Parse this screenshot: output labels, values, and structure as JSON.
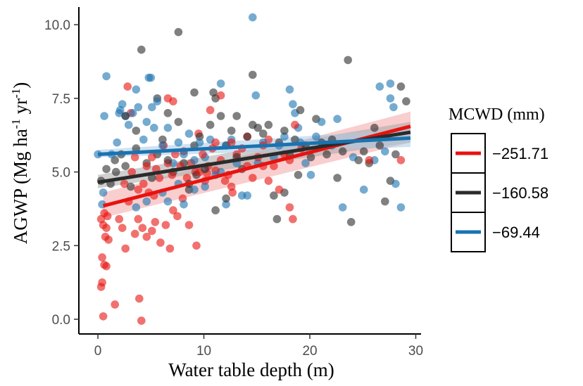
{
  "chart_data": {
    "type": "scatter",
    "xlabel": "Water table depth (m)",
    "ylabel": {
      "prefix": "AGWP (Mg ha",
      "sup1": "-1",
      "mid": " yr",
      "sup2": "-1",
      "suffix": ")"
    },
    "xlim": [
      -1.8,
      30.5
    ],
    "ylim": [
      -0.5,
      10.6
    ],
    "x_ticks": [
      0,
      10,
      20,
      30
    ],
    "x_tick_labels": [
      "0",
      "10",
      "20",
      "30"
    ],
    "y_ticks": [
      0,
      2.5,
      5,
      7.5,
      10
    ],
    "y_tick_labels": [
      "0.0",
      "2.5",
      "5.0",
      "7.5",
      "10.0"
    ],
    "grid": false,
    "legend": {
      "title": "MCWD (mm)",
      "placement": "right",
      "entries": [
        {
          "label": "−251.71",
          "color": "#e8120f"
        },
        {
          "label": "−160.58",
          "color": "#2b2b2b"
        },
        {
          "label": "−69.44",
          "color": "#1a73b0"
        }
      ]
    },
    "fit_lines": [
      {
        "name": "−251.71",
        "color": "#e8120f",
        "band": "#f4a5a5",
        "x": [
          0.5,
          29.5
        ],
        "y": [
          3.85,
          6.55
        ],
        "ci_lo": [
          3.45,
          6.0
        ],
        "ci_hi": [
          4.3,
          7.05
        ]
      },
      {
        "name": "−160.58",
        "color": "#2b2b2b",
        "band": "#a8a8a8",
        "x": [
          0,
          29.5
        ],
        "y": [
          4.65,
          6.35
        ],
        "ci_lo": [
          4.45,
          6.0
        ],
        "ci_hi": [
          4.9,
          6.7
        ]
      },
      {
        "name": "−69.44",
        "color": "#1a73b0",
        "band": "#a8cbe6",
        "x": [
          0,
          29.5
        ],
        "y": [
          5.6,
          6.15
        ],
        "ci_lo": [
          5.5,
          5.85
        ],
        "ci_hi": [
          5.75,
          6.45
        ]
      }
    ],
    "series": [
      {
        "name": "−251.71",
        "color": "#e8120f",
        "points": [
          [
            0.3,
            1.1
          ],
          [
            0.4,
            1.25
          ],
          [
            0.5,
            0.1
          ],
          [
            0.6,
            1.85
          ],
          [
            0.8,
            1.8
          ],
          [
            0.4,
            2.1
          ],
          [
            0.7,
            2.8
          ],
          [
            1.0,
            2.7
          ],
          [
            0.5,
            3.2
          ],
          [
            0.8,
            3.1
          ],
          [
            0.6,
            3.6
          ],
          [
            0.3,
            3.4
          ],
          [
            0.9,
            3.5
          ],
          [
            1.6,
            0.5
          ],
          [
            2.0,
            3.4
          ],
          [
            2.3,
            3.1
          ],
          [
            2.6,
            2.4
          ],
          [
            2.9,
            4.0
          ],
          [
            3.5,
            2.9
          ],
          [
            3.8,
            3.4
          ],
          [
            4.2,
            3.1
          ],
          [
            4.6,
            2.8
          ],
          [
            5.1,
            3.0
          ],
          [
            5.4,
            3.3
          ],
          [
            5.9,
            2.6
          ],
          [
            6.4,
            3.2
          ],
          [
            6.8,
            2.4
          ],
          [
            7.1,
            3.7
          ],
          [
            7.5,
            3.5
          ],
          [
            8.0,
            4.1
          ],
          [
            8.6,
            3.2
          ],
          [
            9.3,
            2.5
          ],
          [
            3.9,
            0.7
          ],
          [
            4.1,
            -0.05
          ],
          [
            2.8,
            7.9
          ],
          [
            2.5,
            4.6
          ],
          [
            3.2,
            5.0
          ],
          [
            3.5,
            5.5
          ],
          [
            3.8,
            4.4
          ],
          [
            4.3,
            4.6
          ],
          [
            4.6,
            5.2
          ],
          [
            5.1,
            5.5
          ],
          [
            5.5,
            5.1
          ],
          [
            5.8,
            4.8
          ],
          [
            6.2,
            5.9
          ],
          [
            6.6,
            5.3
          ],
          [
            7.0,
            4.9
          ],
          [
            7.3,
            5.6
          ],
          [
            7.8,
            5.2
          ],
          [
            8.1,
            5.7
          ],
          [
            8.4,
            4.8
          ],
          [
            8.8,
            5.3
          ],
          [
            9.2,
            5.0
          ],
          [
            9.5,
            6.3
          ],
          [
            9.9,
            5.6
          ],
          [
            10.1,
            4.7
          ],
          [
            10.4,
            5.2
          ],
          [
            10.8,
            5.8
          ],
          [
            11.1,
            6.0
          ],
          [
            11.6,
            5.4
          ],
          [
            12.0,
            4.7
          ],
          [
            12.3,
            4.9
          ],
          [
            12.7,
            4.3
          ],
          [
            12.6,
            4.5
          ],
          [
            13.1,
            5.6
          ],
          [
            13.6,
            5.8
          ],
          [
            14.1,
            5.2
          ],
          [
            14.6,
            4.8
          ],
          [
            15.1,
            5.5
          ],
          [
            15.6,
            5.9
          ],
          [
            16.1,
            6.1
          ],
          [
            16.6,
            5.2
          ],
          [
            17.1,
            4.4
          ],
          [
            17.6,
            5.6
          ],
          [
            18.1,
            3.8
          ],
          [
            18.4,
            3.4
          ],
          [
            18.6,
            6.6
          ],
          [
            19.2,
            5.8
          ],
          [
            3.1,
            7.0
          ],
          [
            6.6,
            7.5
          ],
          [
            7.1,
            7.4
          ],
          [
            10.6,
            7.1
          ],
          [
            11.6,
            7.6
          ],
          [
            12.6,
            6.0
          ],
          [
            14.1,
            6.2
          ],
          [
            15.6,
            5.2
          ],
          [
            16.1,
            4.7
          ],
          [
            18.1,
            5.4
          ],
          [
            25.6,
            5.4
          ],
          [
            28.6,
            5.4
          ],
          [
            9.6,
            5.0
          ],
          [
            10.3,
            4.95
          ],
          [
            11.1,
            5.05
          ],
          [
            4.8,
            4.3
          ],
          [
            5.3,
            4.2
          ]
        ]
      },
      {
        "name": "−160.58",
        "color": "#2b2b2b",
        "points": [
          [
            0.3,
            4.7
          ],
          [
            0.8,
            5.1
          ],
          [
            1.2,
            4.6
          ],
          [
            1.7,
            5.0
          ],
          [
            2.2,
            5.6
          ],
          [
            2.6,
            5.2
          ],
          [
            3.1,
            4.5
          ],
          [
            3.6,
            5.8
          ],
          [
            4.1,
            9.15
          ],
          [
            4.6,
            5.3
          ],
          [
            5.1,
            4.8
          ],
          [
            5.6,
            5.6
          ],
          [
            6.1,
            6.1
          ],
          [
            6.6,
            5.4
          ],
          [
            7.1,
            5.0
          ],
          [
            7.6,
            9.75
          ],
          [
            8.1,
            5.3
          ],
          [
            8.6,
            4.6
          ],
          [
            9.1,
            5.9
          ],
          [
            9.6,
            6.2
          ],
          [
            10.1,
            5.1
          ],
          [
            10.6,
            6.6
          ],
          [
            10.9,
            7.7
          ],
          [
            11.1,
            7.5
          ],
          [
            11.6,
            6.9
          ],
          [
            12.1,
            5.9
          ],
          [
            12.6,
            6.4
          ],
          [
            13.1,
            5.5
          ],
          [
            13.6,
            5.1
          ],
          [
            14.1,
            6.2
          ],
          [
            14.6,
            8.3
          ],
          [
            15.1,
            6.5
          ],
          [
            15.6,
            6.3
          ],
          [
            16.1,
            6.6
          ],
          [
            16.6,
            4.2
          ],
          [
            17.1,
            6.0
          ],
          [
            17.6,
            6.4
          ],
          [
            18.1,
            5.6
          ],
          [
            18.6,
            6.1
          ],
          [
            19.1,
            7.1
          ],
          [
            19.6,
            5.9
          ],
          [
            20.1,
            5.5
          ],
          [
            20.6,
            6.8
          ],
          [
            21.1,
            6.0
          ],
          [
            21.6,
            5.6
          ],
          [
            22.1,
            6.1
          ],
          [
            22.6,
            4.8
          ],
          [
            23.1,
            5.7
          ],
          [
            23.6,
            8.8
          ],
          [
            23.9,
            3.3
          ],
          [
            24.6,
            5.4
          ],
          [
            25.1,
            5.7
          ],
          [
            25.6,
            5.3
          ],
          [
            26.1,
            6.5
          ],
          [
            26.6,
            5.9
          ],
          [
            27.1,
            4.0
          ],
          [
            27.6,
            4.7
          ],
          [
            28.1,
            5.6
          ],
          [
            28.6,
            7.9
          ],
          [
            29.1,
            7.4
          ],
          [
            5.6,
            7.5
          ],
          [
            6.6,
            7.0
          ],
          [
            7.6,
            6.7
          ],
          [
            8.6,
            4.4
          ],
          [
            9.1,
            7.7
          ],
          [
            11.1,
            3.7
          ],
          [
            12.1,
            4.1
          ],
          [
            13.1,
            6.9
          ],
          [
            14.6,
            6.6
          ],
          [
            16.9,
            3.4
          ],
          [
            17.6,
            4.3
          ],
          [
            18.9,
            4.9
          ],
          [
            3.6,
            6.4
          ],
          [
            2.6,
            6.9
          ],
          [
            1.6,
            5.4
          ],
          [
            9.3,
            4.9
          ]
        ]
      },
      {
        "name": "−69.44",
        "color": "#1a73b0",
        "points": [
          [
            0.0,
            5.6
          ],
          [
            0.4,
            3.9
          ],
          [
            0.5,
            4.3
          ],
          [
            0.6,
            6.9
          ],
          [
            0.8,
            8.25
          ],
          [
            1.3,
            5.6
          ],
          [
            1.8,
            6.0
          ],
          [
            2.0,
            7.0
          ],
          [
            2.3,
            7.3
          ],
          [
            2.6,
            6.9
          ],
          [
            2.9,
            6.6
          ],
          [
            3.3,
            7.0
          ],
          [
            3.6,
            7.8
          ],
          [
            3.8,
            7.2
          ],
          [
            4.3,
            6.1
          ],
          [
            4.6,
            6.7
          ],
          [
            4.8,
            8.2
          ],
          [
            5.0,
            8.2
          ],
          [
            5.3,
            6.5
          ],
          [
            5.6,
            7.4
          ],
          [
            6.1,
            5.9
          ],
          [
            6.6,
            6.5
          ],
          [
            7.1,
            5.3
          ],
          [
            7.6,
            6.0
          ],
          [
            8.1,
            5.6
          ],
          [
            8.6,
            6.3
          ],
          [
            9.1,
            5.4
          ],
          [
            9.6,
            6.0
          ],
          [
            10.1,
            5.5
          ],
          [
            10.6,
            6.1
          ],
          [
            11.1,
            4.9
          ],
          [
            11.6,
            8.0
          ],
          [
            12.1,
            5.9
          ],
          [
            12.6,
            6.1
          ],
          [
            13.1,
            5.3
          ],
          [
            14.1,
            4.2
          ],
          [
            14.6,
            10.25
          ],
          [
            14.9,
            7.6
          ],
          [
            15.1,
            5.3
          ],
          [
            15.6,
            6.0
          ],
          [
            16.6,
            5.5
          ],
          [
            17.1,
            5.9
          ],
          [
            17.6,
            6.2
          ],
          [
            18.1,
            7.8
          ],
          [
            18.4,
            7.3
          ],
          [
            18.6,
            7.0
          ],
          [
            18.9,
            6.5
          ],
          [
            19.1,
            6.0
          ],
          [
            19.6,
            5.3
          ],
          [
            20.1,
            4.9
          ],
          [
            20.6,
            6.2
          ],
          [
            21.1,
            6.7
          ],
          [
            22.1,
            5.9
          ],
          [
            22.6,
            6.8
          ],
          [
            23.1,
            3.8
          ],
          [
            24.1,
            5.5
          ],
          [
            25.1,
            4.4
          ],
          [
            26.1,
            5.4
          ],
          [
            26.6,
            7.9
          ],
          [
            27.1,
            5.7
          ],
          [
            27.6,
            7.5
          ],
          [
            27.6,
            8.0
          ],
          [
            27.9,
            7.2
          ],
          [
            28.1,
            4.6
          ],
          [
            28.6,
            3.8
          ],
          [
            3.6,
            3.8
          ],
          [
            4.6,
            4.0
          ],
          [
            6.1,
            4.3
          ],
          [
            9.1,
            4.4
          ],
          [
            10.1,
            4.5
          ],
          [
            12.1,
            3.9
          ],
          [
            13.6,
            4.2
          ],
          [
            8.1,
            3.9
          ],
          [
            6.6,
            4.0
          ],
          [
            7.6,
            4.6
          ],
          [
            2.1,
            7.1
          ],
          [
            5.1,
            7.2
          ],
          [
            11.6,
            5.0
          ]
        ]
      }
    ]
  }
}
